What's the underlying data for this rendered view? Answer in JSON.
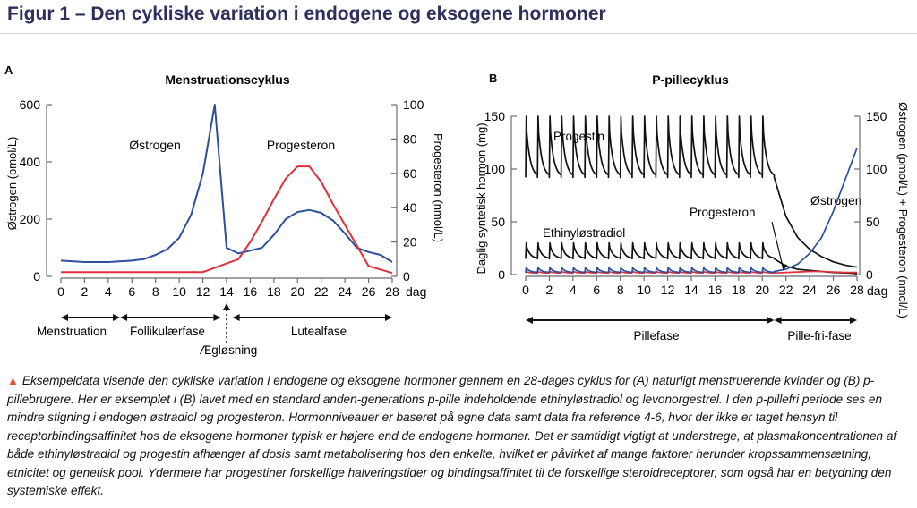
{
  "header": {
    "title": "Figur 1 – Den cykliske variation i endogene og eksogene hormoner"
  },
  "caption": {
    "mark": "▲",
    "text": "Eksempeldata visende den cykliske variation i endogene og eksogene hormoner gennem en 28-dages cyklus for (A) naturligt menstruerende kvinder og (B) p-pillebrugere. Her er eksemplet i (B) lavet med en standard anden-generations p-pille indeholdende ethinyløstradiol og levonorgestrel. I den p-pillefri periode ses en mindre stigning i endogen østradiol og progesteron. Hormonniveauer er baseret på egne data samt data fra reference 4-6, hvor der ikke er taget hensyn til receptorbindingsaffinitet hos de eksogene hormoner typisk er højere end de endogene hormoner. Det er samtidigt vigtigt at understrege, at plasmakoncentrationen af både ethinyløstradiol og progestin afhænger af dosis samt metabolisering hos den enkelte, hvilket er påvirket af mange faktorer herunder kropssammensætning, etnicitet og genetisk pool. Ydermere har progestiner forskellige halveringstider og bindingsaffinitet til de forskellige steroidreceptorer, som også har en betydning den systemiske effekt."
  },
  "colors": {
    "blue": "#2c4f9e",
    "red": "#e0303a",
    "black": "#111111"
  },
  "chart_data": [
    {
      "panel": "A",
      "type": "line",
      "title": "Menstruationscyklus",
      "xlabel": "dag",
      "ylabel": "Østrogen (pmol/L)",
      "y2label": "Progesteron (nmol/L)",
      "xlim": [
        0,
        28
      ],
      "ylim": [
        0,
        600
      ],
      "y2lim": [
        0,
        100
      ],
      "xticks": [
        0,
        2,
        4,
        6,
        8,
        10,
        12,
        14,
        16,
        18,
        20,
        22,
        24,
        26,
        28
      ],
      "yticks": [
        0,
        200,
        400,
        600
      ],
      "y2ticks": [
        0,
        20,
        40,
        60,
        80,
        100
      ],
      "series": [
        {
          "name": "Østrogen",
          "axis": "left",
          "color": "#2c4f9e",
          "x": [
            0,
            2,
            4,
            6,
            7,
            8,
            9,
            10,
            11,
            12,
            13,
            14,
            15,
            16,
            17,
            18,
            19,
            20,
            21,
            22,
            23,
            24,
            25,
            26,
            27,
            28
          ],
          "y": [
            55,
            50,
            50,
            55,
            60,
            75,
            95,
            135,
            215,
            360,
            600,
            100,
            80,
            90,
            100,
            145,
            200,
            225,
            232,
            222,
            195,
            150,
            100,
            85,
            75,
            50
          ]
        },
        {
          "name": "Progesteron",
          "axis": "right",
          "color": "#e0303a",
          "x": [
            0,
            2,
            4,
            6,
            8,
            10,
            12,
            13,
            14,
            15,
            16,
            17,
            18,
            19,
            20,
            21,
            22,
            23,
            24,
            25,
            26,
            27,
            28
          ],
          "y": [
            2.5,
            2.5,
            2.5,
            2.5,
            2.5,
            2.5,
            2.5,
            5,
            7.5,
            10,
            20,
            32,
            45,
            57,
            64,
            64,
            55,
            42,
            30,
            18,
            6,
            4,
            2
          ]
        }
      ],
      "phases": [
        {
          "label": "Menstruation",
          "from": 0,
          "to": 5
        },
        {
          "label": "Follikulærfase",
          "from": 5,
          "to": 13.5
        },
        {
          "label": "Ægløsning",
          "at": 14
        },
        {
          "label": "Lutealfase",
          "from": 14.5,
          "to": 28
        }
      ]
    },
    {
      "panel": "B",
      "type": "line",
      "title": "P-pillecyklus",
      "xlabel": "dag",
      "ylabel": "Daglig syntetisk hormon (mg)",
      "y2label": "Østrogen (pmol/L) + Progesteron (nmol/L)",
      "xlim": [
        0,
        28
      ],
      "ylim": [
        0,
        150
      ],
      "y2lim": [
        0,
        150
      ],
      "xticks": [
        0,
        2,
        4,
        6,
        8,
        10,
        12,
        14,
        16,
        18,
        20,
        22,
        24,
        26,
        28
      ],
      "yticks": [
        0,
        50,
        100,
        150
      ],
      "y2ticks": [
        0,
        50,
        100,
        150
      ],
      "series": [
        {
          "name": "Progestin",
          "axis": "left",
          "color": "#111111",
          "peak": 150,
          "trough": 92,
          "doses": 21,
          "washout": [
            [
              21,
              92
            ],
            [
              22,
              55
            ],
            [
              23,
              35
            ],
            [
              24,
              24
            ],
            [
              25,
              17
            ],
            [
              26,
              12
            ],
            [
              27,
              9
            ],
            [
              28,
              7
            ]
          ]
        },
        {
          "name": "Ethinyløstradiol",
          "axis": "left",
          "color": "#111111",
          "peak": 30,
          "trough": 15,
          "doses": 21,
          "washout": [
            [
              21,
              15
            ],
            [
              22,
              8
            ],
            [
              23,
              5
            ],
            [
              24,
              4
            ],
            [
              25,
              3
            ],
            [
              26,
              2
            ],
            [
              27,
              1.5
            ],
            [
              28,
              1
            ]
          ]
        },
        {
          "name": "Progesteron",
          "axis": "left",
          "color": "#e0303a",
          "peak": 3,
          "trough": 1.5,
          "doses": 21,
          "washout": [
            [
              21,
              1.5
            ],
            [
              22,
              2
            ],
            [
              23,
              2.5
            ],
            [
              24,
              3
            ],
            [
              25,
              3
            ],
            [
              26,
              2.5
            ],
            [
              27,
              2
            ],
            [
              28,
              2
            ]
          ]
        },
        {
          "name": "Østrogen",
          "axis": "right",
          "color": "#2c4f9e",
          "peak": 7,
          "trough": 2,
          "doses": 21,
          "washout": [
            [
              21,
              3
            ],
            [
              22,
              5
            ],
            [
              23,
              10
            ],
            [
              24,
              20
            ],
            [
              25,
              35
            ],
            [
              26,
              60
            ],
            [
              27,
              90
            ],
            [
              28,
              120
            ]
          ]
        }
      ],
      "phases": [
        {
          "label": "Pillefase",
          "from": 0,
          "to": 21
        },
        {
          "label": "Pille-fri-fase",
          "from": 21,
          "to": 28
        }
      ]
    }
  ]
}
